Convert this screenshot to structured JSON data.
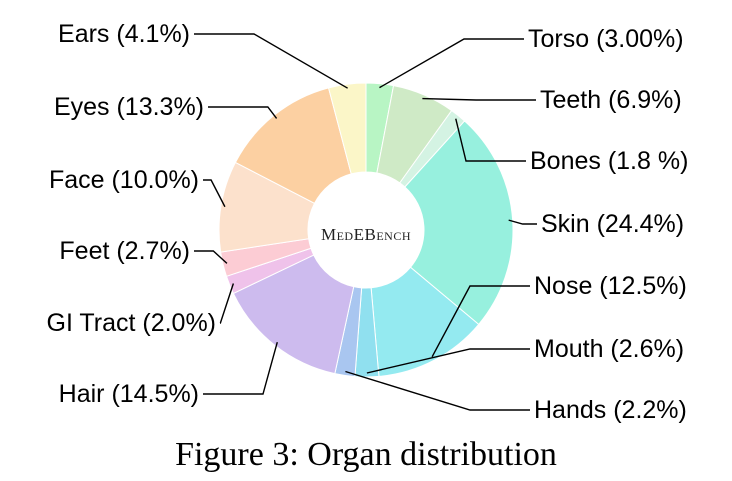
{
  "chart_data": {
    "type": "pie",
    "variant": "donut",
    "center_text": "MedEBench",
    "caption": "Figure 3: Organ distribution",
    "slices": [
      {
        "name": "Torso",
        "value": 3.0,
        "label": "Torso (3.00%)",
        "color": "#b8f5c4"
      },
      {
        "name": "Teeth",
        "value": 6.9,
        "label": "Teeth (6.9%)",
        "color": "#cfeac6"
      },
      {
        "name": "Bones",
        "value": 1.8,
        "label": "Bones (1.8 %)",
        "color": "#d4f3e3"
      },
      {
        "name": "Skin",
        "value": 24.4,
        "label": "Skin (24.4%)",
        "color": "#97f0de"
      },
      {
        "name": "Nose",
        "value": 12.5,
        "label": "Nose (12.5%)",
        "color": "#94eaf0"
      },
      {
        "name": "Mouth",
        "value": 2.6,
        "label": "Mouth (2.6%)",
        "color": "#90e0ef"
      },
      {
        "name": "Hands",
        "value": 2.2,
        "label": "Hands (2.2%)",
        "color": "#a9c6f0"
      },
      {
        "name": "Hair",
        "value": 14.5,
        "label": "Hair (14.5%)",
        "color": "#cdbbee"
      },
      {
        "name": "GI Tract",
        "value": 2.0,
        "label": "GI Tract (2.0%)",
        "color": "#efc2ea"
      },
      {
        "name": "Feet",
        "value": 2.7,
        "label": "Feet (2.7%)",
        "color": "#fcccd4"
      },
      {
        "name": "Face",
        "value": 10.0,
        "label": "Face (10.0%)",
        "color": "#fce1cc"
      },
      {
        "name": "Eyes",
        "value": 13.3,
        "label": "Eyes (13.3%)",
        "color": "#fcd0a2"
      },
      {
        "name": "Ears",
        "value": 4.1,
        "label": "Ears (4.1%)",
        "color": "#fbf6c8"
      }
    ]
  }
}
